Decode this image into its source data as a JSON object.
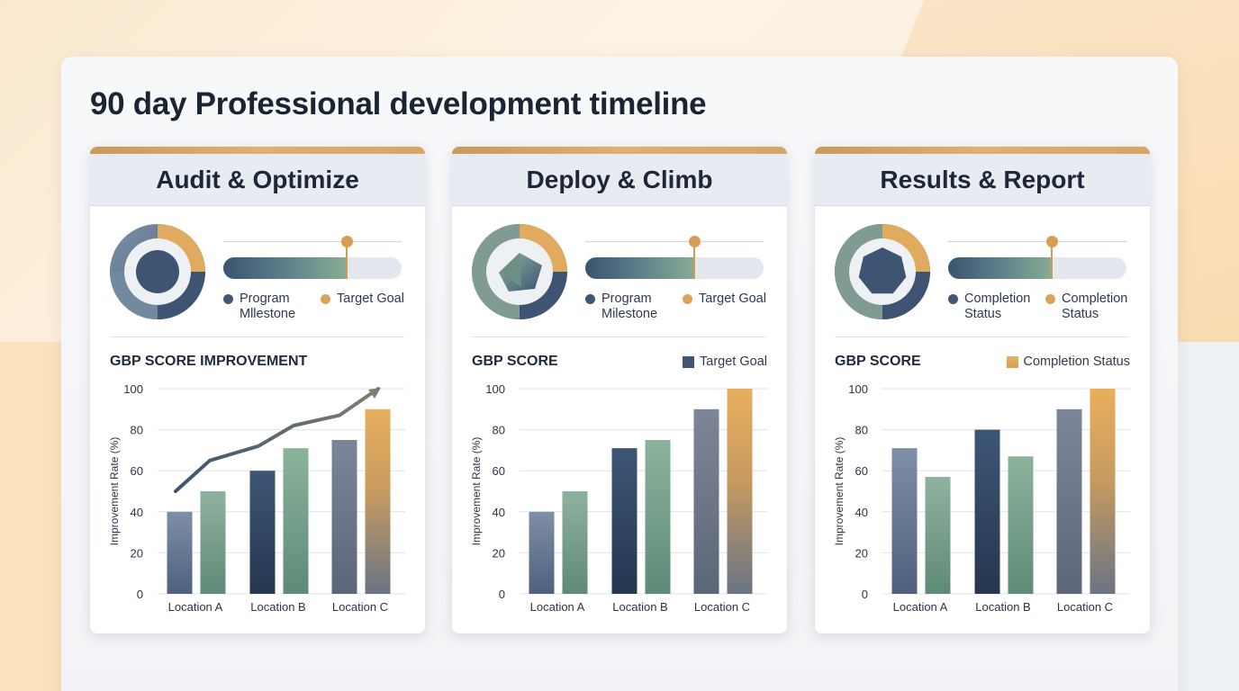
{
  "page": {
    "title": "90 day Professional development timeline"
  },
  "colors": {
    "accent_gold": "#d9a35c",
    "slate_blue": "#3f5774",
    "sage_green": "#7fa68f",
    "steel_gray": "#6f7b8c"
  },
  "cards": [
    {
      "title": "Audit & Optimize",
      "indicator_icon": "circle",
      "progress": 0.69,
      "legend": [
        "Program Mllestone",
        "Target Goal"
      ],
      "chart_title": "GBP SCORE IMPROVEMENT",
      "chart_legend": ""
    },
    {
      "title": "Deploy & Climb",
      "indicator_icon": "pentagon",
      "progress": 0.61,
      "legend": [
        "Program Milestone",
        "Target Goal"
      ],
      "chart_title": "GBP SCORE",
      "chart_legend": "Target Goal"
    },
    {
      "title": "Results & Report",
      "indicator_icon": "heptagon",
      "progress": 0.58,
      "legend": [
        "Completion Status",
        "Completion Status"
      ],
      "chart_title": "GBP SCORE",
      "chart_legend": "Completion Status"
    }
  ],
  "chart_data": [
    {
      "type": "bar",
      "title": "GBP SCORE IMPROVEMENT",
      "ylabel": "Improvement Rate (%)",
      "categories": [
        "Location A",
        "Location B",
        "Location C"
      ],
      "ylim": [
        0,
        100
      ],
      "yticks": [
        0,
        20,
        40,
        60,
        80,
        100
      ],
      "grid": true,
      "values_pairs": [
        [
          40,
          50
        ],
        [
          60,
          71
        ],
        [
          75,
          90
        ]
      ],
      "trend_line": [
        50,
        65,
        72,
        82,
        87,
        100
      ]
    },
    {
      "type": "bar",
      "title": "GBP SCORE",
      "ylabel": "Improvement Rate (%)",
      "legend": "Target Goal",
      "categories": [
        "Location A",
        "Location B",
        "Location C"
      ],
      "ylim": [
        0,
        100
      ],
      "yticks": [
        0,
        20,
        40,
        60,
        80,
        100
      ],
      "grid": true,
      "values_pairs": [
        [
          40,
          50
        ],
        [
          71,
          75
        ],
        [
          90,
          100
        ]
      ]
    },
    {
      "type": "bar",
      "title": "GBP SCORE",
      "ylabel": "Improvement Rate (%)",
      "legend": "Completion Status",
      "categories": [
        "Location A",
        "Location B",
        "Location C"
      ],
      "ylim": [
        0,
        100
      ],
      "yticks": [
        0,
        20,
        40,
        60,
        80,
        100
      ],
      "grid": true,
      "values_pairs": [
        [
          71,
          57
        ],
        [
          80,
          67
        ],
        [
          90,
          100
        ]
      ]
    }
  ]
}
